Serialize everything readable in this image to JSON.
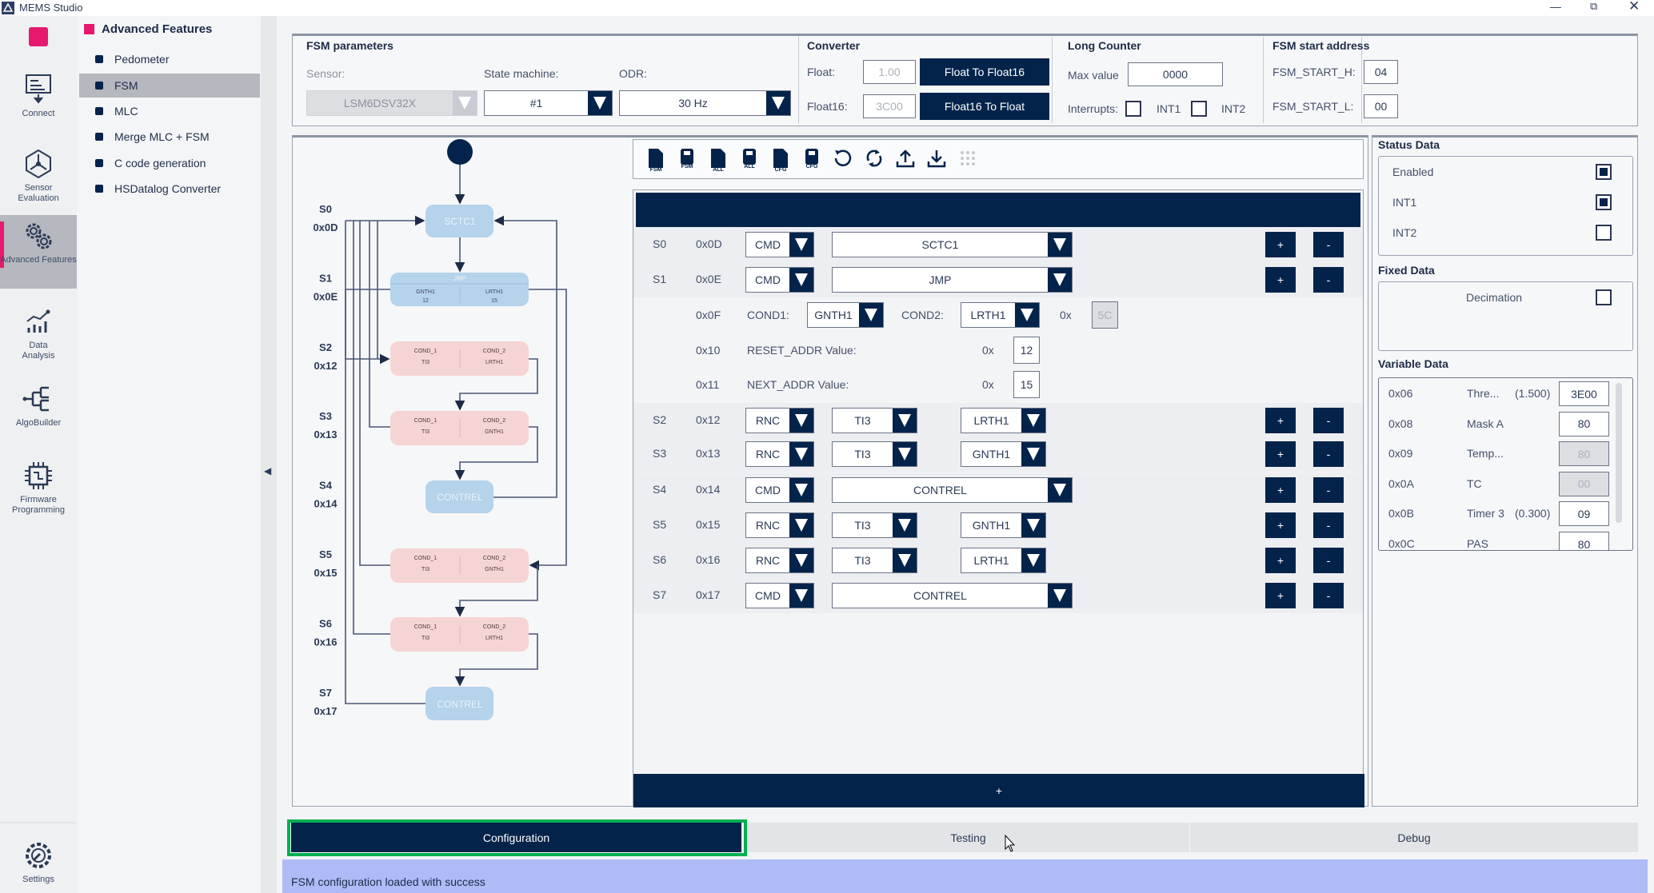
{
  "window": {
    "title": "MEMS Studio",
    "controls": [
      "minimize",
      "restore",
      "close"
    ]
  },
  "rail": {
    "items": [
      {
        "label": "Connect",
        "icon": "connect-icon"
      },
      {
        "label": "Sensor Evaluation",
        "icon": "sensor-evaluation-icon"
      },
      {
        "label": "Advanced Features",
        "icon": "gears-icon",
        "active": true
      },
      {
        "label": "Data Analysis",
        "icon": "chart-icon"
      },
      {
        "label": "AlgoBuilder",
        "icon": "algo-tree-icon"
      },
      {
        "label": "Firmware Programming",
        "icon": "chip-icon"
      },
      {
        "label": "Settings",
        "icon": "settings-gear-icon"
      }
    ],
    "accent": "#e6196e"
  },
  "menu": {
    "title": "Advanced Features",
    "items": [
      "Pedometer",
      "FSM",
      "MLC",
      "Merge MLC + FSM",
      "C code generation",
      "HSDatalog Converter"
    ],
    "selected": "FSM"
  },
  "fsm_params": {
    "title": "FSM parameters",
    "sensor_label": "Sensor:",
    "sensor": "LSM6DSV32X",
    "state_machine_label": "State machine:",
    "state_machine": "#1",
    "odr_label": "ODR:",
    "odr": "30 Hz"
  },
  "converter": {
    "title": "Converter",
    "float_label": "Float:",
    "float_value": "1.00",
    "to_float16_button": "Float To Float16",
    "float16_label": "Float16:",
    "float16_value": "3C00",
    "to_float_button": "Float16 To Float"
  },
  "long_counter": {
    "title": "Long Counter",
    "max_label": "Max value",
    "max_value": "0000",
    "interrupts_label": "Interrupts:",
    "int1_label": "INT1",
    "int1_checked": false,
    "int2_label": "INT2",
    "int2_checked": false
  },
  "start_address": {
    "title": "FSM start address",
    "h_label": "FSM_START_H:",
    "h_value": "04",
    "l_label": "FSM_START_L:",
    "l_value": "00"
  },
  "toolbar": {
    "tools": [
      {
        "icon": "file-load-icon",
        "label": "FSM"
      },
      {
        "icon": "file-save-icon",
        "label": "FSM"
      },
      {
        "icon": "file-load-icon",
        "label": "ALL"
      },
      {
        "icon": "file-save-icon",
        "label": "ALL"
      },
      {
        "icon": "file-load-icon",
        "label": "CFG"
      },
      {
        "icon": "file-save-icon",
        "label": "CFG"
      },
      {
        "icon": "reset-icon",
        "label": ""
      },
      {
        "icon": "sync-icon",
        "label": ""
      },
      {
        "icon": "upload-icon",
        "label": ""
      },
      {
        "icon": "download-icon",
        "label": ""
      },
      {
        "icon": "grid-icon",
        "label": ""
      }
    ]
  },
  "diagram": {
    "state_labels": [
      {
        "state": "S0",
        "addr": "0x0D"
      },
      {
        "state": "S1",
        "addr": "0x0E"
      },
      {
        "state": "S2",
        "addr": "0x12"
      },
      {
        "state": "S3",
        "addr": "0x13"
      },
      {
        "state": "S4",
        "addr": "0x14"
      },
      {
        "state": "S5",
        "addr": "0x15"
      },
      {
        "state": "S6",
        "addr": "0x16"
      },
      {
        "state": "S7",
        "addr": "0x17"
      }
    ],
    "nodes": {
      "s0": "SCTC1",
      "s1": {
        "title": "JMP",
        "left": "GNTH1",
        "left_val": "12",
        "right": "LRTH1",
        "right_val": "15"
      },
      "s2": {
        "c1": "COND_1",
        "v1": "TI3",
        "c2": "COND_2",
        "v2": "LRTH1"
      },
      "s3": {
        "c1": "COND_1",
        "v1": "TI3",
        "c2": "COND_2",
        "v2": "GNTH1"
      },
      "s4": "CONTREL",
      "s5": {
        "c1": "COND_1",
        "v1": "TI3",
        "c2": "COND_2",
        "v2": "GNTH1"
      },
      "s6": {
        "c1": "COND_1",
        "v1": "TI3",
        "c2": "COND_2",
        "v2": "LRTH1"
      },
      "s7": "CONTREL"
    }
  },
  "program": {
    "rows": [
      {
        "state": "S0",
        "addr": "0x0D",
        "kind": "CMD",
        "command": "SCTC1"
      },
      {
        "state": "S1",
        "addr": "0x0E",
        "kind": "CMD",
        "command": "JMP"
      },
      {
        "state": "S2",
        "addr": "0x12",
        "kind": "RNC",
        "cond1": "TI3",
        "cond2": "LRTH1"
      },
      {
        "state": "S3",
        "addr": "0x13",
        "kind": "RNC",
        "cond1": "TI3",
        "cond2": "GNTH1"
      },
      {
        "state": "S4",
        "addr": "0x14",
        "kind": "CMD",
        "command": "CONTREL"
      },
      {
        "state": "S5",
        "addr": "0x15",
        "kind": "RNC",
        "cond1": "TI3",
        "cond2": "GNTH1"
      },
      {
        "state": "S6",
        "addr": "0x16",
        "kind": "RNC",
        "cond1": "TI3",
        "cond2": "LRTH1"
      },
      {
        "state": "S7",
        "addr": "0x17",
        "kind": "CMD",
        "command": "CONTREL"
      }
    ],
    "jmp_detail": {
      "cond_addr": "0x0F",
      "cond1_label": "COND1:",
      "cond1": "GNTH1",
      "cond2_label": "COND2:",
      "cond2": "LRTH1",
      "mask_prefix": "0x",
      "mask": "5C",
      "reset_addr": "0x10",
      "reset_label": "RESET_ADDR Value:",
      "reset_prefix": "0x",
      "reset_value": "12",
      "next_addr": "0x11",
      "next_label": "NEXT_ADDR Value:",
      "next_prefix": "0x",
      "next_value": "15"
    },
    "add_label": "+",
    "remove_label": "-",
    "add_state_label": "+"
  },
  "status_data": {
    "title": "Status Data",
    "items": [
      {
        "label": "Enabled",
        "checked": true
      },
      {
        "label": "INT1",
        "checked": true
      },
      {
        "label": "INT2",
        "checked": false
      }
    ]
  },
  "fixed_data": {
    "title": "Fixed Data",
    "decimation_label": "Decimation",
    "decimation_checked": false
  },
  "variable_data": {
    "title": "Variable Data",
    "rows": [
      {
        "addr": "0x06",
        "name": "Thre...",
        "extra": "(1.500)",
        "value": "3E00",
        "disabled": false
      },
      {
        "addr": "0x08",
        "name": "Mask A",
        "extra": "",
        "value": "80",
        "disabled": false
      },
      {
        "addr": "0x09",
        "name": "Temp...",
        "extra": "",
        "value": "80",
        "disabled": true
      },
      {
        "addr": "0x0A",
        "name": "TC",
        "extra": "",
        "value": "00",
        "disabled": true
      },
      {
        "addr": "0x0B",
        "name": "Timer 3",
        "extra": "(0.300)",
        "value": "09",
        "disabled": false
      },
      {
        "addr": "0x0C",
        "name": "PAS",
        "extra": "",
        "value": "80",
        "disabled": false
      }
    ]
  },
  "tabs": {
    "items": [
      "Configuration",
      "Testing",
      "Debug"
    ],
    "active": "Configuration",
    "highlight": "#00b050"
  },
  "status_bar": {
    "message": "FSM configuration loaded with success",
    "color": "#aebbf7"
  }
}
